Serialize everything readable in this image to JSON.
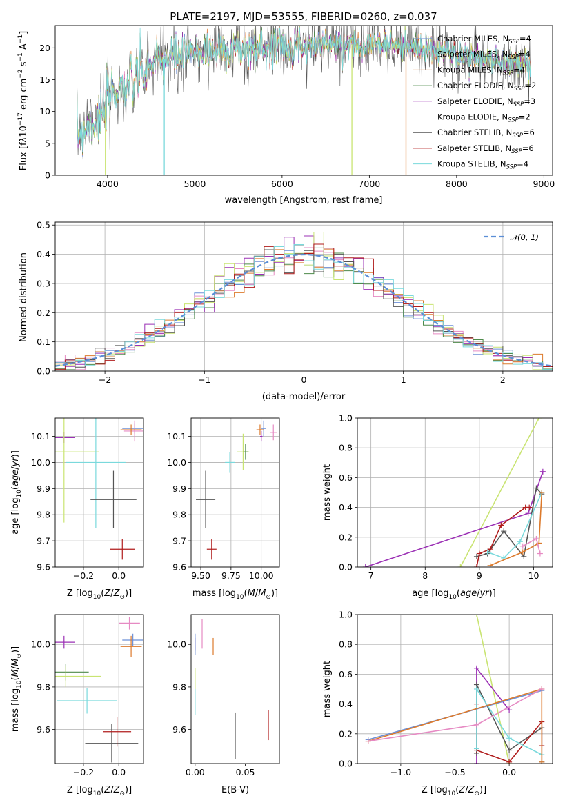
{
  "chart_data": [
    {
      "type": "line",
      "title": "PLATE=2197, MJD=53555, FIBERID=0260, z=0.037",
      "xlabel": "wavelength [Angstrom, rest frame]",
      "ylabel": "Flux [f$_\\lambda$10$^{-17}$ erg cm$^{-2}$ s$^{-1}$ A$^{-1}$]",
      "xlim": [
        3400,
        9100
      ],
      "ylim": [
        0,
        23.5
      ],
      "x_ticks": [
        4000,
        5000,
        6000,
        7000,
        8000,
        9000
      ],
      "y_ticks": [
        0,
        5,
        10,
        15,
        20
      ],
      "grid": false,
      "legend_position": "top-right",
      "continuum": {
        "x": [
          3650,
          3800,
          3950,
          4000,
          4100,
          4300,
          4500,
          4700,
          5000,
          5300,
          5600,
          6000,
          6500,
          7000,
          7400,
          7800,
          8200,
          8600,
          8850
        ],
        "y": [
          6.5,
          8.0,
          9.5,
          12.0,
          13.5,
          14.5,
          17.5,
          18.5,
          19.2,
          19.8,
          19.8,
          20.3,
          20.6,
          20.5,
          20.3,
          19.4,
          18.6,
          17.8,
          17.4
        ]
      },
      "series": [
        {
          "name": "Chabrier MILES, N$_{SSP}$=4",
          "color": "#6b8fd6"
        },
        {
          "name": "Salpeter MILES, N$_{SSP}$=4",
          "color": "#e68ac3"
        },
        {
          "name": "Kroupa MILES, N$_{SSP}$=4",
          "color": "#dc7a2c"
        },
        {
          "name": "Chabrier ELODIE, N$_{SSP}$=2",
          "color": "#4e8a4a"
        },
        {
          "name": "Salpeter ELODIE, N$_{SSP}$=3",
          "color": "#9b30b5"
        },
        {
          "name": "Kroupa ELODIE, N$_{SSP}$=2",
          "color": "#c9e472"
        },
        {
          "name": "Chabrier STELIB, N$_{SSP}$=6",
          "color": "#555555"
        },
        {
          "name": "Salpeter STELIB, N$_{SSP}$=6",
          "color": "#b01c1c"
        },
        {
          "name": "Kroupa STELIB, N$_{SSP}$=4",
          "color": "#7ad9dc"
        }
      ]
    },
    {
      "type": "histogram",
      "xlabel": "(data-model)/error",
      "ylabel": "Normed distribution",
      "xlim": [
        -2.5,
        2.5
      ],
      "ylim": [
        0,
        0.51
      ],
      "x_ticks": [
        -2,
        -1,
        0,
        1,
        2
      ],
      "y_ticks": [
        0.0,
        0.1,
        0.2,
        0.3,
        0.4,
        0.5
      ],
      "grid": true,
      "legend": "$\\mathcal{N}(0,1)$",
      "legend_position": "top-right",
      "bin_width": 0.1,
      "bin_start": -2.5,
      "reference_curve": {
        "name": "$\\mathcal{N}(0,1)$",
        "type": "normal",
        "mean": 0,
        "sigma": 1,
        "color": "#5b8ed6"
      },
      "series_colors": [
        "#6b8fd6",
        "#e68ac3",
        "#dc7a2c",
        "#4e8a4a",
        "#9b30b5",
        "#c9e472",
        "#555555",
        "#b01c1c",
        "#7ad9dc"
      ]
    },
    {
      "type": "scatter",
      "xlabel": "Z [log$_{10}$(Z/Z$_\\odot$)]",
      "ylabel": "age  [log$_{10}$(age/yr)]",
      "xlim": [
        -0.36,
        0.14
      ],
      "ylim": [
        9.6,
        10.17
      ],
      "x_ticks": [
        -0.2,
        0.0
      ],
      "y_ticks": [
        9.6,
        9.7,
        9.8,
        9.9,
        10.0,
        10.1
      ],
      "grid": true,
      "points": [
        {
          "x": -0.31,
          "y": 10.095,
          "xerr": 0.06,
          "yerr": 0.02,
          "color": "#9b30b5"
        },
        {
          "x": -0.31,
          "y": 10.04,
          "xerr": 0.2,
          "yerr": 0.27,
          "color": "#c9e472"
        },
        {
          "x": -0.13,
          "y": 10.0,
          "xerr": 0.17,
          "yerr": 0.25,
          "color": "#7ad9dc"
        },
        {
          "x": 0.09,
          "y": 10.13,
          "xerr": 0.07,
          "yerr": 0.02,
          "color": "#6b8fd6"
        },
        {
          "x": 0.09,
          "y": 10.12,
          "xerr": 0.06,
          "yerr": 0.04,
          "color": "#e68ac3"
        },
        {
          "x": 0.07,
          "y": 10.125,
          "xerr": 0.06,
          "yerr": 0.02,
          "color": "#dc7a2c"
        },
        {
          "x": -0.03,
          "y": 9.858,
          "xerr": 0.13,
          "yerr": 0.11,
          "color": "#555555"
        },
        {
          "x": 0.02,
          "y": 9.668,
          "xerr": 0.07,
          "yerr": 0.04,
          "color": "#b01c1c"
        }
      ]
    },
    {
      "type": "scatter",
      "xlabel": "mass [log$_{10}$(M/M$_\\odot$)]",
      "ylabel": "",
      "xlim": [
        9.42,
        10.15
      ],
      "ylim": [
        9.6,
        10.17
      ],
      "x_ticks": [
        9.5,
        9.75,
        10.0
      ],
      "y_ticks": [
        9.6,
        9.7,
        9.8,
        9.9,
        10.0,
        10.1
      ],
      "grid": true,
      "points": [
        {
          "x": 9.54,
          "y": 9.858,
          "xerr": 0.08,
          "yerr": 0.11,
          "color": "#555555"
        },
        {
          "x": 9.59,
          "y": 9.668,
          "xerr": 0.04,
          "yerr": 0.04,
          "color": "#b01c1c"
        },
        {
          "x": 9.74,
          "y": 10.0,
          "xerr": 0.04,
          "yerr": 0.04,
          "color": "#7ad9dc"
        },
        {
          "x": 9.85,
          "y": 10.04,
          "xerr": 0.05,
          "yerr": 0.07,
          "color": "#c9e472"
        },
        {
          "x": 9.87,
          "y": 10.04,
          "xerr": 0.02,
          "yerr": 0.03,
          "color": "#4e8a4a"
        },
        {
          "x": 10.0,
          "y": 10.1,
          "xerr": 0.01,
          "yerr": 0.02,
          "color": "#9b30b5"
        },
        {
          "x": 9.99,
          "y": 10.125,
          "xerr": 0.03,
          "yerr": 0.02,
          "color": "#dc7a2c"
        },
        {
          "x": 10.02,
          "y": 10.13,
          "xerr": 0.02,
          "yerr": 0.03,
          "color": "#6b8fd6"
        },
        {
          "x": 10.1,
          "y": 10.115,
          "xerr": 0.03,
          "yerr": 0.03,
          "color": "#e68ac3"
        }
      ]
    },
    {
      "type": "line",
      "xlabel": "age  [log$_{10}$(age/yr)]",
      "ylabel": "mass weight",
      "xlim": [
        6.75,
        10.35
      ],
      "ylim": [
        0,
        1.0
      ],
      "x_ticks": [
        7,
        8,
        9,
        10
      ],
      "y_ticks": [
        0.0,
        0.2,
        0.4,
        0.6,
        0.8,
        1.0
      ],
      "grid": true,
      "series": [
        {
          "color": "#c9e472",
          "x": [
            8.65,
            10.1
          ],
          "y": [
            0.0,
            1.0
          ]
        },
        {
          "color": "#9b30b5",
          "x": [
            6.9,
            9.9,
            10.17
          ],
          "y": [
            0.0,
            0.36,
            0.64
          ]
        },
        {
          "color": "#555555",
          "x": [
            8.95,
            9.15,
            9.45,
            9.82,
            10.05,
            10.15
          ],
          "y": [
            0.07,
            0.09,
            0.24,
            0.07,
            0.53,
            0.49
          ]
        },
        {
          "color": "#b01c1c",
          "x": [
            8.95,
            9.0,
            9.2,
            9.4,
            9.85,
            9.92
          ],
          "y": [
            0.0,
            0.09,
            0.12,
            0.28,
            0.4,
            0.4
          ]
        },
        {
          "color": "#7ad9dc",
          "x": [
            9.15,
            9.45,
            9.75,
            10.15
          ],
          "y": [
            0.1,
            0.06,
            0.17,
            0.5
          ]
        },
        {
          "color": "#dc7a2c",
          "x": [
            9.2,
            9.8,
            10.1,
            10.15
          ],
          "y": [
            0.01,
            0.1,
            0.16,
            0.5
          ]
        },
        {
          "color": "#e68ac3",
          "x": [
            9.8,
            10.05,
            10.12
          ],
          "y": [
            0.14,
            0.19,
            0.09
          ]
        }
      ]
    },
    {
      "type": "scatter",
      "xlabel": "Z [log$_{10}$(Z/Z$_\\odot$)]",
      "ylabel": "mass [log$_{10}$(M/M$_\\odot$)]",
      "xlim": [
        -0.36,
        0.14
      ],
      "ylim": [
        9.44,
        10.14
      ],
      "x_ticks": [
        -0.2,
        0.0
      ],
      "y_ticks": [
        9.6,
        9.8,
        10.0
      ],
      "grid": true,
      "points": [
        {
          "x": -0.31,
          "y": 10.01,
          "xerr": 0.06,
          "yerr": 0.03,
          "color": "#9b30b5"
        },
        {
          "x": -0.3,
          "y": 9.87,
          "xerr": 0.13,
          "yerr": 0.04,
          "color": "#4e8a4a"
        },
        {
          "x": -0.3,
          "y": 9.85,
          "xerr": 0.2,
          "yerr": 0.05,
          "color": "#c9e472"
        },
        {
          "x": -0.18,
          "y": 9.735,
          "xerr": 0.17,
          "yerr": 0.06,
          "color": "#7ad9dc"
        },
        {
          "x": 0.06,
          "y": 10.1,
          "xerr": 0.06,
          "yerr": 0.03,
          "color": "#e68ac3"
        },
        {
          "x": 0.08,
          "y": 10.02,
          "xerr": 0.06,
          "yerr": 0.03,
          "color": "#6b8fd6"
        },
        {
          "x": 0.07,
          "y": 9.99,
          "xerr": 0.06,
          "yerr": 0.05,
          "color": "#dc7a2c"
        },
        {
          "x": -0.04,
          "y": 9.535,
          "xerr": 0.15,
          "yerr": 0.09,
          "color": "#555555"
        },
        {
          "x": -0.01,
          "y": 9.59,
          "xerr": 0.08,
          "yerr": 0.07,
          "color": "#b01c1c"
        }
      ]
    },
    {
      "type": "scatter",
      "xlabel": "E(B-V)",
      "ylabel": "",
      "xlim": [
        -0.004,
        0.084
      ],
      "ylim": [
        9.44,
        10.14
      ],
      "x_ticks": [
        0.0,
        0.05
      ],
      "y_ticks": [
        9.6,
        9.8,
        10.0
      ],
      "grid": false,
      "points": [
        {
          "x": 0.0,
          "y": 10.0,
          "xerr": 0,
          "yerr": 0.03,
          "color": "#9b30b5"
        },
        {
          "x": 0.0,
          "y": 10.0,
          "xerr": 0,
          "yerr": 0.05,
          "color": "#6b8fd6"
        },
        {
          "x": 0.0,
          "y": 9.84,
          "xerr": 0,
          "yerr": 0.05,
          "color": "#c9e472"
        },
        {
          "x": 0.0,
          "y": 9.73,
          "xerr": 0,
          "yerr": 0.06,
          "color": "#7ad9dc"
        },
        {
          "x": 0.007,
          "y": 10.05,
          "xerr": 0,
          "yerr": 0.07,
          "color": "#e68ac3"
        },
        {
          "x": 0.018,
          "y": 9.99,
          "xerr": 0,
          "yerr": 0.04,
          "color": "#dc7a2c"
        },
        {
          "x": 0.04,
          "y": 9.57,
          "xerr": 0,
          "yerr": 0.11,
          "color": "#555555"
        },
        {
          "x": 0.073,
          "y": 9.62,
          "xerr": 0,
          "yerr": 0.07,
          "color": "#b01c1c"
        }
      ]
    },
    {
      "type": "line",
      "xlabel": "Z [log$_{10}$(Z/Z$_\\odot$)]",
      "ylabel": "mass weight",
      "xlim": [
        -1.4,
        0.4
      ],
      "ylim": [
        0,
        1.0
      ],
      "x_ticks": [
        -1.0,
        -0.5,
        0.0
      ],
      "y_ticks": [
        0.0,
        0.2,
        0.4,
        0.6,
        0.8,
        1.0
      ],
      "grid": true,
      "series": [
        {
          "color": "#c9e472",
          "x": [
            -0.3,
            0.0
          ],
          "y": [
            1.0,
            0.0
          ]
        },
        {
          "color": "#9b30b5",
          "x": [
            -0.3,
            -0.3,
            0.0
          ],
          "y": [
            0.0,
            0.64,
            0.36
          ]
        },
        {
          "color": "#555555",
          "x": [
            -0.3,
            -0.3,
            0.0,
            0.3,
            0.3
          ],
          "y": [
            0.07,
            0.53,
            0.09,
            0.24,
            0.01
          ]
        },
        {
          "color": "#b01c1c",
          "x": [
            -0.3,
            -0.3,
            0.0,
            0.3,
            0.3
          ],
          "y": [
            0.4,
            0.09,
            0.01,
            0.28,
            0.12
          ]
        },
        {
          "color": "#7ad9dc",
          "x": [
            -0.3,
            -0.3,
            0.0,
            0.3
          ],
          "y": [
            0.1,
            0.5,
            0.17,
            0.06
          ]
        },
        {
          "color": "#6b8fd6",
          "x": [
            -1.3,
            0.3
          ],
          "y": [
            0.16,
            0.49
          ]
        },
        {
          "color": "#dc7a2c",
          "x": [
            -1.3,
            0.3,
            0.3
          ],
          "y": [
            0.15,
            0.5,
            0.01
          ]
        },
        {
          "color": "#e68ac3",
          "x": [
            -1.3,
            -0.3,
            0.3
          ],
          "y": [
            0.15,
            0.26,
            0.5
          ]
        }
      ]
    }
  ]
}
